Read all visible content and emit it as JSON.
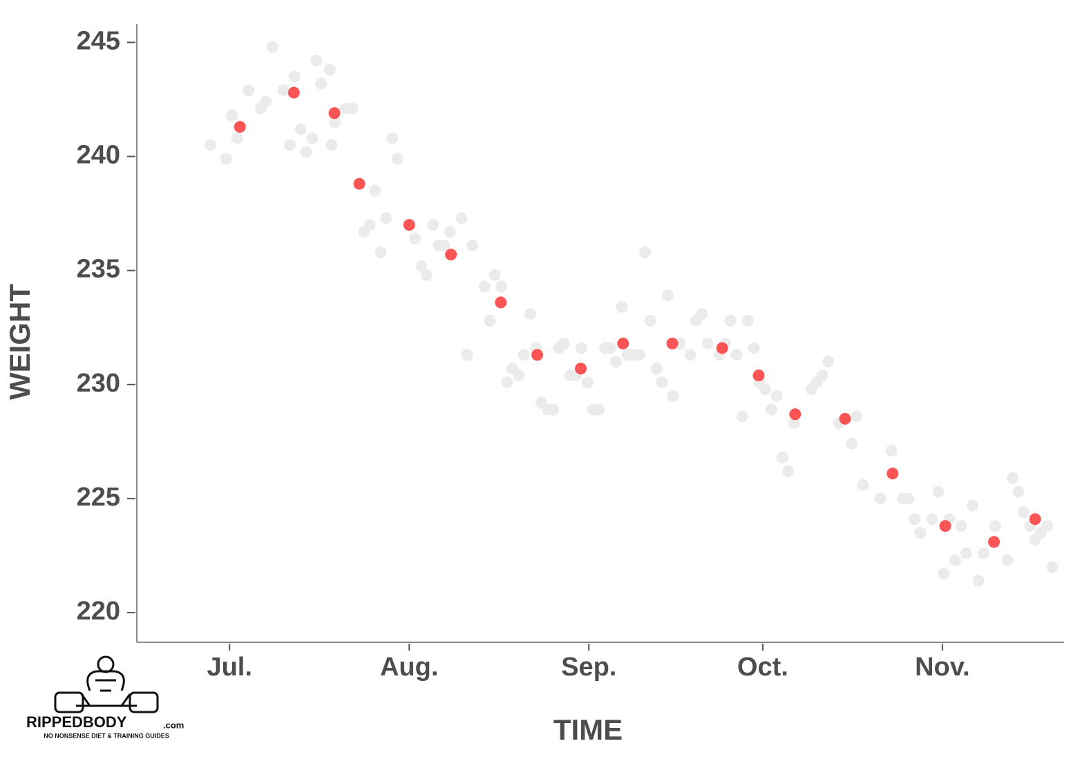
{
  "chart_data": {
    "type": "scatter",
    "x_label": "TIME",
    "y_label": "WEIGHT",
    "xlim": [
      -16,
      144
    ],
    "ylim": [
      218.7,
      245.8
    ],
    "xticks": [
      {
        "value": 0,
        "label": "Jul."
      },
      {
        "value": 31,
        "label": "Aug."
      },
      {
        "value": 62,
        "label": "Sep."
      },
      {
        "value": 92,
        "label": "Oct."
      },
      {
        "value": 123,
        "label": "Nov."
      }
    ],
    "yticks": [
      220,
      225,
      230,
      235,
      240,
      245
    ],
    "series": [
      {
        "color": "#ebebeb",
        "x": [
          -3.3,
          -0.6,
          0.4,
          1.3,
          3.3,
          5.4,
          6.3,
          7.4,
          9.3,
          10.4,
          11.2,
          12.3,
          13.2,
          14.3,
          15.0,
          15.8,
          17.3,
          17.6,
          18.2,
          20.0,
          21.2,
          23.2,
          24.2,
          25.1,
          26.1,
          27.0,
          28.1,
          29.0,
          32.0,
          33.1,
          34.0,
          35.1,
          36.1,
          37.0,
          38.0,
          40.0,
          41.0,
          41.9,
          44.0,
          44.9,
          45.8,
          46.9,
          47.9,
          48.8,
          49.9,
          50.8,
          51.9,
          52.9,
          53.8,
          54.9,
          55.8,
          56.8,
          57.7,
          58.8,
          59.8,
          60.7,
          61.8,
          62.7,
          63.7,
          64.8,
          65.7,
          66.7,
          67.7,
          68.7,
          69.6,
          70.7,
          71.7,
          72.6,
          73.7,
          74.6,
          75.6,
          76.5,
          77.6,
          79.5,
          80.5,
          81.5,
          82.5,
          84.5,
          85.5,
          86.4,
          87.5,
          88.5,
          89.4,
          90.5,
          91.4,
          92.4,
          93.5,
          94.4,
          95.4,
          96.4,
          97.4,
          100.4,
          101.3,
          102.3,
          103.3,
          105.2,
          107.3,
          108.2,
          109.3,
          112.3,
          114.2,
          116.2,
          117.1,
          118.2,
          119.2,
          121.2,
          122.3,
          123.2,
          124.2,
          125.2,
          126.2,
          127.1,
          128.2,
          129.2,
          130.1,
          132.1,
          134.2,
          135.1,
          136.1,
          137.0,
          138.1,
          139.0,
          140.0,
          141.1,
          142.0
        ],
        "values": [
          240.5,
          239.9,
          241.8,
          240.8,
          242.9,
          242.1,
          242.4,
          244.8,
          242.9,
          240.5,
          243.5,
          241.2,
          240.2,
          240.8,
          244.2,
          243.2,
          243.8,
          240.5,
          241.5,
          242.1,
          242.1,
          236.7,
          237.0,
          238.5,
          235.8,
          237.3,
          240.8,
          239.9,
          236.4,
          235.2,
          234.8,
          237.0,
          236.1,
          236.1,
          236.7,
          237.3,
          231.3,
          236.1,
          234.3,
          232.8,
          234.8,
          234.3,
          230.1,
          230.7,
          230.4,
          231.3,
          233.1,
          231.6,
          229.2,
          228.9,
          228.9,
          231.6,
          231.8,
          230.4,
          230.4,
          231.6,
          230.1,
          228.9,
          228.9,
          231.6,
          231.6,
          231.0,
          233.4,
          231.3,
          231.3,
          231.3,
          235.8,
          232.8,
          230.7,
          230.1,
          233.9,
          229.5,
          231.8,
          231.3,
          232.8,
          233.1,
          231.8,
          231.3,
          231.8,
          232.8,
          231.3,
          228.6,
          232.8,
          231.6,
          230.1,
          229.8,
          228.9,
          229.5,
          226.8,
          226.2,
          228.3,
          229.8,
          230.1,
          230.4,
          231.0,
          228.3,
          227.4,
          228.6,
          225.6,
          225.0,
          227.1,
          225.0,
          225.0,
          224.1,
          223.5,
          224.1,
          225.3,
          221.7,
          224.1,
          222.3,
          223.8,
          222.6,
          224.7,
          221.4,
          222.6,
          223.8,
          222.3,
          225.9,
          225.3,
          224.4,
          223.8,
          223.2,
          223.5,
          223.8,
          222.0
        ]
      },
      {
        "color": "#fb5454",
        "x": [
          1.8,
          11.1,
          18.1,
          22.4,
          31.0,
          38.2,
          46.8,
          53.1,
          60.6,
          67.9,
          76.4,
          85.0,
          91.3,
          97.6,
          106.2,
          114.4,
          123.5,
          131.9,
          139.0
        ],
        "values": [
          241.3,
          242.8,
          241.9,
          238.8,
          237.0,
          235.7,
          233.6,
          231.3,
          230.7,
          231.8,
          231.8,
          231.6,
          230.4,
          228.7,
          228.5,
          226.1,
          223.8,
          223.1,
          224.1
        ]
      }
    ]
  },
  "logo": {
    "name": "RIPPEDBODY",
    "suffix": ".com",
    "tagline": "NO NONSENSE DIET & TRAINING GUIDES"
  }
}
